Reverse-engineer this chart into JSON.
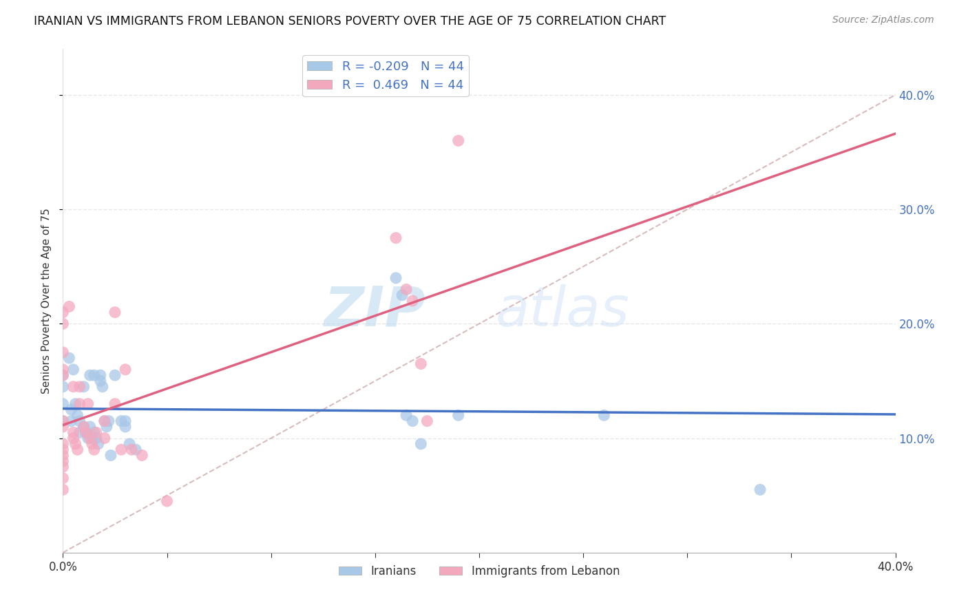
{
  "title": "IRANIAN VS IMMIGRANTS FROM LEBANON SENIORS POVERTY OVER THE AGE OF 75 CORRELATION CHART",
  "source": "Source: ZipAtlas.com",
  "ylabel": "Seniors Poverty Over the Age of 75",
  "xlim": [
    0.0,
    0.4
  ],
  "ylim": [
    0.0,
    0.44
  ],
  "R_iranian": -0.209,
  "N_iranian": 44,
  "R_lebanon": 0.469,
  "N_lebanon": 44,
  "iranians_color": "#a8c8e8",
  "lebanon_color": "#f4a8be",
  "iranians_line_color": "#4472c4",
  "lebanon_line_color": "#e06080",
  "diagonal_color": "#c8a0a0",
  "iranians_legend_color": "#a8c8e8",
  "lebanon_legend_color": "#f4a8be",
  "right_axis_color": "#4472c4",
  "watermark_color": "#cce0f5",
  "background_color": "#ffffff",
  "grid_color": "#e8e8e8",
  "iranians_scatter": [
    [
      0.0,
      0.13
    ],
    [
      0.0,
      0.155
    ],
    [
      0.0,
      0.145
    ],
    [
      0.0,
      0.115
    ],
    [
      0.003,
      0.17
    ],
    [
      0.004,
      0.125
    ],
    [
      0.004,
      0.115
    ],
    [
      0.005,
      0.16
    ],
    [
      0.006,
      0.13
    ],
    [
      0.007,
      0.12
    ],
    [
      0.008,
      0.115
    ],
    [
      0.008,
      0.105
    ],
    [
      0.01,
      0.145
    ],
    [
      0.01,
      0.11
    ],
    [
      0.011,
      0.105
    ],
    [
      0.012,
      0.1
    ],
    [
      0.013,
      0.155
    ],
    [
      0.013,
      0.11
    ],
    [
      0.014,
      0.1
    ],
    [
      0.015,
      0.155
    ],
    [
      0.015,
      0.105
    ],
    [
      0.016,
      0.1
    ],
    [
      0.017,
      0.095
    ],
    [
      0.018,
      0.155
    ],
    [
      0.018,
      0.15
    ],
    [
      0.019,
      0.145
    ],
    [
      0.02,
      0.115
    ],
    [
      0.021,
      0.11
    ],
    [
      0.022,
      0.115
    ],
    [
      0.023,
      0.085
    ],
    [
      0.025,
      0.155
    ],
    [
      0.028,
      0.115
    ],
    [
      0.03,
      0.115
    ],
    [
      0.03,
      0.11
    ],
    [
      0.032,
      0.095
    ],
    [
      0.035,
      0.09
    ],
    [
      0.16,
      0.24
    ],
    [
      0.163,
      0.225
    ],
    [
      0.165,
      0.12
    ],
    [
      0.168,
      0.115
    ],
    [
      0.172,
      0.095
    ],
    [
      0.19,
      0.12
    ],
    [
      0.26,
      0.12
    ],
    [
      0.335,
      0.055
    ]
  ],
  "lebanon_scatter": [
    [
      0.0,
      0.115
    ],
    [
      0.0,
      0.11
    ],
    [
      0.0,
      0.175
    ],
    [
      0.0,
      0.2
    ],
    [
      0.0,
      0.21
    ],
    [
      0.0,
      0.16
    ],
    [
      0.0,
      0.155
    ],
    [
      0.0,
      0.095
    ],
    [
      0.0,
      0.09
    ],
    [
      0.0,
      0.085
    ],
    [
      0.0,
      0.08
    ],
    [
      0.0,
      0.075
    ],
    [
      0.0,
      0.065
    ],
    [
      0.0,
      0.055
    ],
    [
      0.003,
      0.215
    ],
    [
      0.005,
      0.105
    ],
    [
      0.005,
      0.1
    ],
    [
      0.006,
      0.095
    ],
    [
      0.007,
      0.09
    ],
    [
      0.008,
      0.145
    ],
    [
      0.01,
      0.11
    ],
    [
      0.011,
      0.105
    ],
    [
      0.013,
      0.1
    ],
    [
      0.014,
      0.095
    ],
    [
      0.015,
      0.09
    ],
    [
      0.016,
      0.105
    ],
    [
      0.02,
      0.1
    ],
    [
      0.025,
      0.21
    ],
    [
      0.028,
      0.09
    ],
    [
      0.03,
      0.16
    ],
    [
      0.033,
      0.09
    ],
    [
      0.038,
      0.085
    ],
    [
      0.05,
      0.045
    ],
    [
      0.16,
      0.275
    ],
    [
      0.165,
      0.23
    ],
    [
      0.168,
      0.22
    ],
    [
      0.172,
      0.165
    ],
    [
      0.175,
      0.115
    ],
    [
      0.19,
      0.36
    ],
    [
      0.005,
      0.145
    ],
    [
      0.008,
      0.13
    ],
    [
      0.012,
      0.13
    ],
    [
      0.02,
      0.115
    ],
    [
      0.025,
      0.13
    ]
  ]
}
